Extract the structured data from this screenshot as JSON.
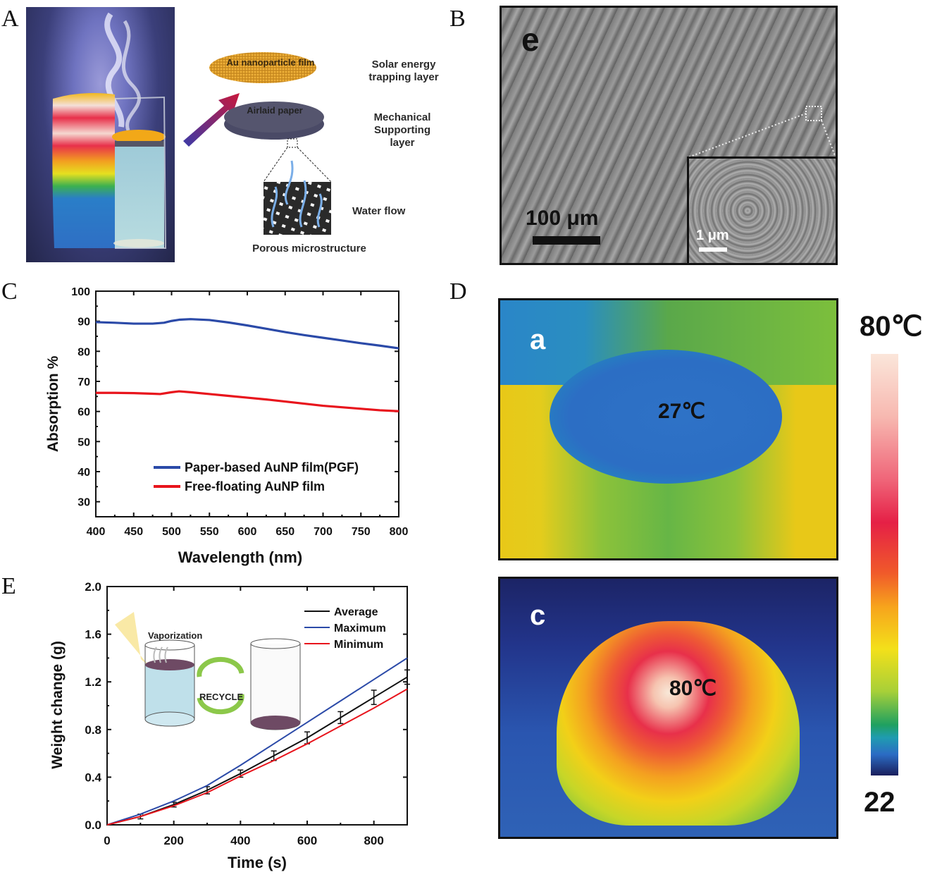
{
  "figure": {
    "panel_letters": [
      "A",
      "B",
      "C",
      "D",
      "E"
    ]
  },
  "panel_a": {
    "labels": {
      "au_film": "Au nanoparticle film",
      "airlaid": "Airlaid paper",
      "solar_line1": "Solar energy",
      "solar_line2": "trapping layer",
      "mech_line1": "Mechanical",
      "mech_line2": "Supporting",
      "mech_line3": "layer",
      "water_flow": "Water flow",
      "porous": "Porous  microstructure"
    }
  },
  "panel_b": {
    "sublabel": "e",
    "scale_main": "100 μm",
    "scale_inset": "1 μm"
  },
  "panel_d": {
    "image_a_label": "a",
    "image_a_temp": "27℃",
    "image_c_label": "c",
    "image_c_temp": "80℃",
    "colorbar_max": "80℃",
    "colorbar_min": "22",
    "colorbar_range_c": [
      22,
      80
    ]
  },
  "chart_data": [
    {
      "id": "C",
      "type": "line",
      "title": "",
      "xlabel": "Wavelength (nm)",
      "ylabel": "Absorption %",
      "xlim": [
        400,
        800
      ],
      "ylim": [
        25,
        100
      ],
      "xticks": [
        400,
        450,
        500,
        550,
        600,
        650,
        700,
        750,
        800
      ],
      "yticks": [
        30,
        40,
        50,
        60,
        70,
        80,
        90,
        100
      ],
      "grid": false,
      "legend_position": "bottom-right",
      "series": [
        {
          "name": "Paper-based AuNP film(PGF)",
          "color": "#2b4aa8",
          "x": [
            400,
            425,
            450,
            475,
            490,
            500,
            510,
            525,
            550,
            575,
            600,
            625,
            650,
            675,
            700,
            725,
            750,
            775,
            800
          ],
          "y": [
            89.7,
            89.5,
            89.2,
            89.2,
            89.5,
            90.1,
            90.5,
            90.7,
            90.4,
            89.6,
            88.6,
            87.5,
            86.4,
            85.4,
            84.5,
            83.6,
            82.7,
            81.9,
            81.0
          ]
        },
        {
          "name": "Free-floating AuNP film",
          "color": "#e8141c",
          "x": [
            400,
            425,
            450,
            475,
            485,
            500,
            510,
            525,
            550,
            575,
            600,
            625,
            650,
            675,
            700,
            725,
            750,
            775,
            800
          ],
          "y": [
            66.2,
            66.2,
            66.1,
            65.9,
            65.8,
            66.4,
            66.7,
            66.4,
            65.8,
            65.2,
            64.6,
            64.0,
            63.3,
            62.6,
            61.9,
            61.4,
            60.9,
            60.4,
            60.1
          ]
        }
      ]
    },
    {
      "id": "E",
      "type": "line",
      "title": "",
      "xlabel": "Time (s)",
      "ylabel": "Weight change (g)",
      "xlim": [
        0,
        900
      ],
      "ylim": [
        0,
        2.0
      ],
      "xticks": [
        0,
        200,
        400,
        600,
        800
      ],
      "yticks": [
        0.0,
        0.4,
        0.8,
        1.2,
        1.6,
        2.0
      ],
      "ytick_labels": [
        "0.0",
        "0.4",
        "0.8",
        "1.2",
        "1.6",
        "2.0"
      ],
      "grid": false,
      "legend_position": "top-right",
      "inset_labels": {
        "vaporization": "Vaporization",
        "recycle": "RECYCLE"
      },
      "series": [
        {
          "name": "Average",
          "color": "#111111",
          "x": [
            0,
            100,
            200,
            300,
            400,
            500,
            600,
            700,
            800,
            900
          ],
          "y": [
            0.0,
            0.07,
            0.17,
            0.29,
            0.43,
            0.58,
            0.73,
            0.9,
            1.07,
            1.24
          ],
          "error": [
            0.0,
            0.02,
            0.02,
            0.03,
            0.03,
            0.04,
            0.05,
            0.05,
            0.06,
            0.06
          ]
        },
        {
          "name": "Maximum",
          "color": "#2b4aa8",
          "x": [
            0,
            100,
            200,
            300,
            400,
            500,
            600,
            700,
            800,
            900
          ],
          "y": [
            0.0,
            0.09,
            0.2,
            0.33,
            0.5,
            0.68,
            0.86,
            1.04,
            1.22,
            1.4
          ]
        },
        {
          "name": "Minimum",
          "color": "#e8141c",
          "x": [
            0,
            100,
            200,
            300,
            400,
            500,
            600,
            700,
            800,
            900
          ],
          "y": [
            0.0,
            0.07,
            0.16,
            0.27,
            0.41,
            0.54,
            0.68,
            0.83,
            0.98,
            1.14
          ]
        }
      ]
    }
  ]
}
